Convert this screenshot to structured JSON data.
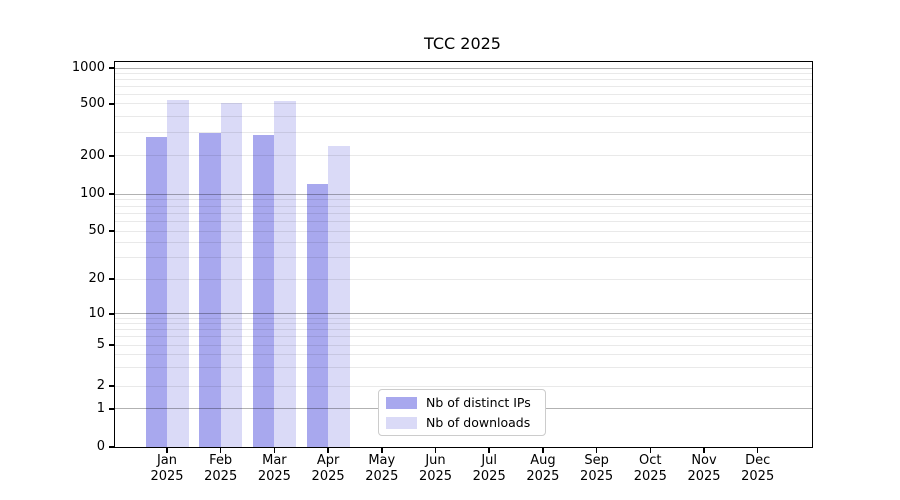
{
  "chart_data": {
    "type": "bar",
    "title": "TCC 2025",
    "x_months": [
      "Jan",
      "Feb",
      "Mar",
      "Apr",
      "May",
      "Jun",
      "Jul",
      "Aug",
      "Sep",
      "Oct",
      "Nov",
      "Dec"
    ],
    "x_year": "2025",
    "categories": [
      "Jan 2025",
      "Feb 2025",
      "Mar 2025",
      "Apr 2025",
      "May 2025",
      "Jun 2025",
      "Jul 2025",
      "Aug 2025",
      "Sep 2025",
      "Oct 2025",
      "Nov 2025",
      "Dec 2025"
    ],
    "yscale": "symlog",
    "ylim": [
      0,
      1000
    ],
    "yticks": [
      0,
      1,
      2,
      5,
      10,
      20,
      50,
      100,
      200,
      500,
      1000
    ],
    "grid": "horizontal log minor + major decade lines",
    "legend_position": "inside lower-center",
    "series": [
      {
        "name": "Nb of distinct IPs",
        "color": "#a8a8ee",
        "values": [
          275,
          295,
          285,
          120,
          null,
          null,
          null,
          null,
          null,
          null,
          null,
          null
        ]
      },
      {
        "name": "Nb of downloads",
        "color": "#dadaf7",
        "values": [
          535,
          505,
          520,
          235,
          null,
          null,
          null,
          null,
          null,
          null,
          null,
          null
        ]
      }
    ]
  }
}
